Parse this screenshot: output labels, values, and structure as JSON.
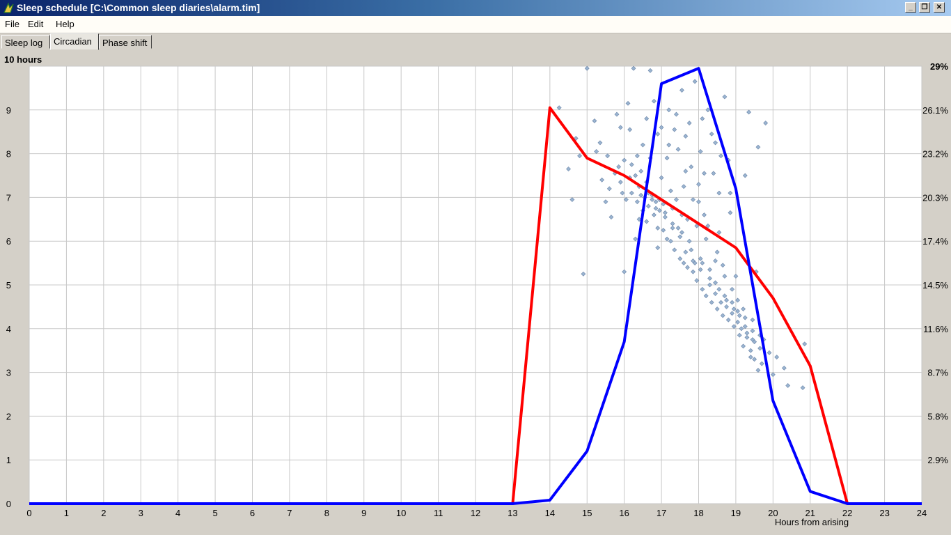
{
  "window": {
    "title": "Sleep schedule [C:\\Common sleep diaries\\alarm.tim]",
    "min_label": "_",
    "max_label": "❐",
    "close_label": "✕"
  },
  "menu": [
    "File",
    "Edit",
    "Help"
  ],
  "tabs": [
    {
      "label": "Sleep log",
      "active": false
    },
    {
      "label": "Circadian",
      "active": true
    },
    {
      "label": "Phase shift",
      "active": false
    }
  ],
  "chart_data": {
    "type": "line",
    "ylabel": "10 hours",
    "xlabel": "Hours from arising",
    "xlim": [
      0,
      24
    ],
    "ylim": [
      0,
      10
    ],
    "x_ticks": [
      0,
      1,
      2,
      3,
      4,
      5,
      6,
      7,
      8,
      9,
      10,
      11,
      12,
      13,
      14,
      15,
      16,
      17,
      18,
      19,
      20,
      21,
      22,
      23,
      24
    ],
    "y_ticks": [
      0,
      1,
      2,
      3,
      4,
      5,
      6,
      7,
      8,
      9
    ],
    "right_ticks": [
      {
        "y": 1,
        "label": "2.9%"
      },
      {
        "y": 2,
        "label": "5.8%"
      },
      {
        "y": 3,
        "label": "8.7%"
      },
      {
        "y": 4,
        "label": "11.6%"
      },
      {
        "y": 5,
        "label": "14.5%"
      },
      {
        "y": 6,
        "label": "17.4%"
      },
      {
        "y": 7,
        "label": "20.3%"
      },
      {
        "y": 8,
        "label": "23.2%"
      },
      {
        "y": 9,
        "label": "26.1%"
      },
      {
        "y": 10,
        "label": "29%"
      }
    ],
    "grid": true,
    "series": [
      {
        "color": "#ff0000",
        "x": [
          0,
          1,
          2,
          3,
          4,
          5,
          6,
          7,
          8,
          9,
          10,
          11,
          12,
          13,
          14,
          15,
          16,
          17,
          18,
          19,
          20,
          21,
          22,
          23,
          24
        ],
        "values": [
          0,
          0,
          0,
          0,
          0,
          0,
          0,
          0,
          0,
          0,
          0,
          0,
          0,
          0,
          9.05,
          7.9,
          7.5,
          6.95,
          6.4,
          5.85,
          4.7,
          3.15,
          0,
          0,
          0
        ]
      },
      {
        "color": "#0000ff",
        "x": [
          0,
          1,
          2,
          3,
          4,
          5,
          6,
          7,
          8,
          9,
          10,
          11,
          12,
          13,
          14,
          15,
          16,
          17,
          18,
          19,
          20,
          21,
          22,
          23,
          24
        ],
        "values": [
          0,
          0,
          0,
          0,
          0,
          0,
          0,
          0,
          0,
          0,
          0,
          0,
          0,
          0,
          0.08,
          1.2,
          3.7,
          9.6,
          9.95,
          7.2,
          2.35,
          0.28,
          0,
          0,
          0
        ]
      }
    ],
    "scatter": {
      "color": "#9ab4d0",
      "points": [
        [
          14.25,
          9.05
        ],
        [
          14.5,
          7.65
        ],
        [
          14.7,
          8.35
        ],
        [
          14.8,
          7.95
        ],
        [
          14.6,
          6.95
        ],
        [
          14.9,
          5.25
        ],
        [
          15.0,
          9.95
        ],
        [
          15.2,
          8.75
        ],
        [
          15.25,
          8.05
        ],
        [
          15.4,
          7.4
        ],
        [
          15.5,
          6.9
        ],
        [
          15.6,
          7.2
        ],
        [
          15.75,
          7.55
        ],
        [
          15.8,
          8.9
        ],
        [
          15.85,
          7.7
        ],
        [
          15.9,
          7.35
        ],
        [
          15.95,
          7.1
        ],
        [
          16.0,
          7.85
        ],
        [
          16.1,
          9.15
        ],
        [
          16.15,
          7.45
        ],
        [
          16.2,
          7.1
        ],
        [
          16.25,
          9.95
        ],
        [
          16.3,
          7.5
        ],
        [
          16.35,
          6.9
        ],
        [
          16.4,
          7.25
        ],
        [
          16.45,
          7.6
        ],
        [
          16.5,
          6.7
        ],
        [
          16.55,
          7.0
        ],
        [
          16.6,
          6.45
        ],
        [
          16.65,
          6.8
        ],
        [
          16.7,
          9.9
        ],
        [
          16.75,
          7.05
        ],
        [
          16.8,
          6.6
        ],
        [
          16.85,
          6.9
        ],
        [
          16.9,
          6.3
        ],
        [
          16.95,
          6.7
        ],
        [
          17.0,
          8.6
        ],
        [
          17.05,
          6.25
        ],
        [
          17.1,
          6.55
        ],
        [
          17.15,
          6.05
        ],
        [
          17.2,
          8.2
        ],
        [
          17.25,
          6.0
        ],
        [
          17.3,
          6.4
        ],
        [
          17.35,
          5.8
        ],
        [
          17.4,
          8.9
        ],
        [
          17.45,
          6.3
        ],
        [
          17.5,
          5.6
        ],
        [
          17.55,
          6.6
        ],
        [
          17.6,
          5.5
        ],
        [
          17.65,
          8.4
        ],
        [
          17.7,
          5.4
        ],
        [
          17.75,
          6.0
        ],
        [
          17.8,
          7.7
        ],
        [
          17.85,
          5.3
        ],
        [
          17.9,
          5.5
        ],
        [
          17.95,
          5.1
        ],
        [
          18.0,
          7.3
        ],
        [
          18.05,
          5.35
        ],
        [
          18.1,
          4.9
        ],
        [
          18.15,
          6.6
        ],
        [
          18.2,
          4.75
        ],
        [
          18.25,
          9.0
        ],
        [
          18.3,
          5.0
        ],
        [
          18.35,
          4.6
        ],
        [
          18.4,
          7.55
        ],
        [
          18.45,
          4.8
        ],
        [
          18.5,
          4.45
        ],
        [
          18.55,
          6.2
        ],
        [
          18.6,
          4.6
        ],
        [
          18.65,
          4.3
        ],
        [
          18.7,
          9.3
        ],
        [
          18.75,
          4.5
        ],
        [
          18.8,
          4.2
        ],
        [
          18.85,
          7.1
        ],
        [
          18.9,
          4.35
        ],
        [
          18.95,
          4.05
        ],
        [
          19.0,
          5.2
        ],
        [
          19.05,
          4.15
        ],
        [
          19.1,
          3.85
        ],
        [
          19.15,
          4.0
        ],
        [
          19.2,
          3.6
        ],
        [
          19.25,
          7.5
        ],
        [
          19.3,
          3.8
        ],
        [
          19.35,
          8.95
        ],
        [
          19.4,
          3.5
        ],
        [
          19.45,
          4.2
        ],
        [
          19.5,
          3.3
        ],
        [
          19.55,
          5.3
        ],
        [
          19.6,
          8.15
        ],
        [
          19.7,
          3.2
        ],
        [
          19.8,
          8.7
        ],
        [
          19.9,
          3.45
        ],
        [
          20.0,
          2.95
        ],
        [
          20.1,
          3.35
        ],
        [
          20.3,
          3.1
        ],
        [
          20.4,
          2.7
        ],
        [
          20.8,
          2.65
        ],
        [
          20.85,
          3.65
        ],
        [
          16.05,
          6.95
        ],
        [
          16.4,
          6.5
        ],
        [
          16.6,
          7.35
        ],
        [
          16.85,
          6.75
        ],
        [
          17.05,
          6.85
        ],
        [
          17.3,
          6.75
        ],
        [
          17.55,
          6.2
        ],
        [
          17.8,
          5.8
        ],
        [
          18.05,
          5.6
        ],
        [
          18.3,
          5.35
        ],
        [
          18.55,
          4.9
        ],
        [
          18.75,
          4.65
        ],
        [
          18.95,
          4.45
        ],
        [
          19.1,
          4.3
        ],
        [
          19.3,
          3.9
        ],
        [
          19.5,
          3.7
        ],
        [
          19.65,
          3.55
        ],
        [
          19.75,
          3.75
        ],
        [
          16.2,
          7.75
        ],
        [
          16.5,
          8.2
        ],
        [
          16.9,
          8.45
        ],
        [
          17.15,
          7.9
        ],
        [
          17.45,
          8.1
        ],
        [
          17.75,
          8.7
        ],
        [
          18.05,
          8.05
        ],
        [
          18.45,
          8.25
        ],
        [
          18.8,
          7.85
        ],
        [
          15.65,
          6.55
        ],
        [
          16.0,
          5.3
        ],
        [
          15.35,
          8.25
        ],
        [
          16.3,
          6.05
        ],
        [
          16.7,
          7.9
        ],
        [
          17.0,
          7.45
        ],
        [
          17.25,
          7.15
        ],
        [
          17.6,
          7.25
        ],
        [
          17.95,
          6.35
        ],
        [
          18.2,
          6.05
        ],
        [
          18.5,
          5.75
        ],
        [
          18.7,
          5.2
        ],
        [
          19.05,
          4.65
        ],
        [
          19.25,
          4.05
        ],
        [
          19.45,
          3.95
        ],
        [
          16.15,
          8.55
        ],
        [
          16.8,
          9.2
        ],
        [
          17.2,
          9.0
        ],
        [
          17.55,
          9.45
        ],
        [
          17.9,
          9.65
        ],
        [
          18.1,
          8.8
        ],
        [
          18.35,
          8.45
        ],
        [
          18.6,
          7.95
        ],
        [
          16.9,
          5.85
        ],
        [
          17.4,
          6.95
        ],
        [
          17.7,
          6.5
        ],
        [
          18.0,
          6.9
        ],
        [
          18.25,
          6.35
        ],
        [
          18.45,
          5.55
        ],
        [
          18.65,
          5.45
        ],
        [
          18.9,
          4.9
        ],
        [
          19.2,
          4.45
        ],
        [
          19.4,
          3.35
        ],
        [
          19.6,
          3.05
        ],
        [
          15.55,
          7.95
        ],
        [
          15.9,
          8.6
        ],
        [
          16.35,
          7.95
        ],
        [
          16.6,
          8.8
        ],
        [
          17.35,
          8.55
        ],
        [
          17.65,
          7.6
        ],
        [
          17.85,
          6.95
        ],
        [
          18.15,
          7.55
        ],
        [
          18.55,
          7.1
        ],
        [
          18.85,
          6.65
        ],
        [
          16.45,
          7.05
        ],
        [
          16.65,
          7.1
        ],
        [
          16.75,
          6.95
        ],
        [
          16.95,
          6.95
        ],
        [
          17.1,
          6.65
        ],
        [
          17.3,
          6.3
        ],
        [
          17.5,
          6.1
        ],
        [
          17.65,
          5.75
        ],
        [
          17.85,
          5.55
        ],
        [
          18.1,
          5.5
        ],
        [
          18.3,
          5.15
        ],
        [
          18.45,
          5.05
        ],
        [
          18.7,
          4.75
        ],
        [
          18.9,
          4.6
        ],
        [
          19.05,
          4.4
        ],
        [
          19.25,
          4.25
        ],
        [
          19.45,
          3.75
        ],
        [
          19.65,
          3.85
        ]
      ]
    }
  }
}
